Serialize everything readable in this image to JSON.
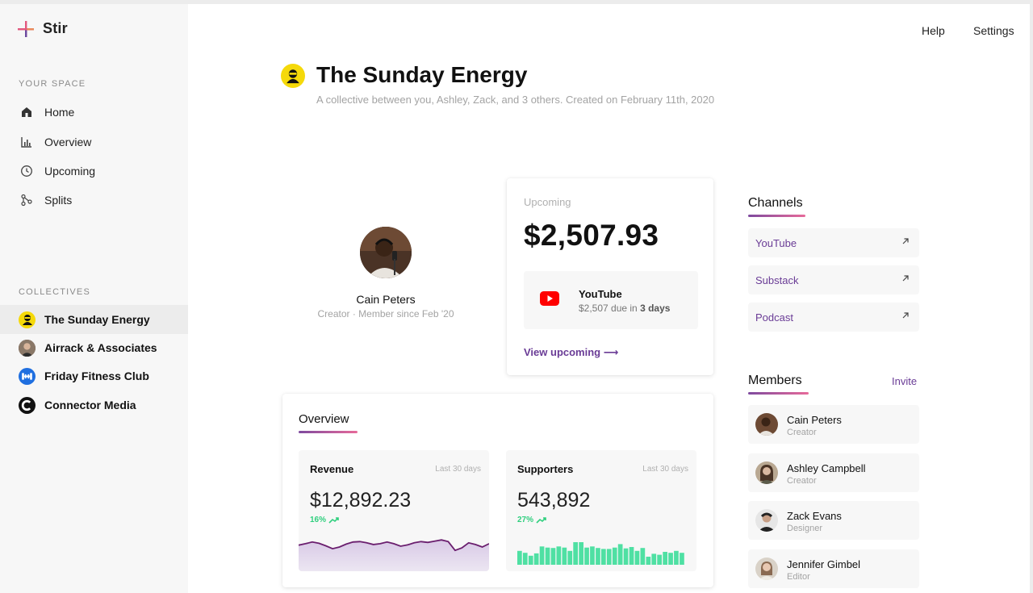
{
  "app": {
    "name": "Stir"
  },
  "top_links": {
    "help": "Help",
    "settings": "Settings"
  },
  "sidebar": {
    "your_space_label": "YOUR SPACE",
    "nav": [
      {
        "label": "Home",
        "icon": "home-icon"
      },
      {
        "label": "Overview",
        "icon": "bar-chart-icon"
      },
      {
        "label": "Upcoming",
        "icon": "clock-icon"
      },
      {
        "label": "Splits",
        "icon": "splits-icon"
      }
    ],
    "collectives_label": "COLLECTIVES",
    "collectives": [
      {
        "label": "The Sunday Energy",
        "active": true
      },
      {
        "label": "Airrack & Associates",
        "active": false
      },
      {
        "label": "Friday Fitness Club",
        "active": false
      },
      {
        "label": "Connector Media",
        "active": false
      }
    ]
  },
  "header": {
    "title": "The Sunday Energy",
    "subtitle": "A collective between you, Ashley, Zack, and 3 others. Created on February 11th, 2020"
  },
  "profile": {
    "name": "Cain Peters",
    "meta": "Creator · Member since Feb '20"
  },
  "upcoming": {
    "label": "Upcoming",
    "amount": "$2,507.93",
    "source_name": "YouTube",
    "due_prefix": "$2,507 due in ",
    "due_days": "3 days",
    "link": "View upcoming ⟶"
  },
  "overview": {
    "title": "Overview",
    "revenue": {
      "label": "Revenue",
      "range": "Last 30 days",
      "value": "$12,892.23",
      "delta": "16%",
      "trend": [
        0.55,
        0.62,
        0.7,
        0.64,
        0.52,
        0.38,
        0.46,
        0.6,
        0.7,
        0.72,
        0.66,
        0.58,
        0.62,
        0.7,
        0.62,
        0.5,
        0.56,
        0.66,
        0.72,
        0.68,
        0.74,
        0.8,
        0.72,
        0.3,
        0.42,
        0.66,
        0.58,
        0.46,
        0.62
      ]
    },
    "supporters": {
      "label": "Supporters",
      "range": "Last 30 days",
      "value": "543,892",
      "delta": "27%",
      "bars": [
        0.55,
        0.45,
        0.3,
        0.42,
        0.78,
        0.72,
        0.7,
        0.78,
        0.72,
        0.55,
        1.0,
        1.0,
        0.72,
        0.78,
        0.7,
        0.65,
        0.65,
        0.72,
        0.9,
        0.68,
        0.75,
        0.55,
        0.7,
        0.25,
        0.4,
        0.35,
        0.5,
        0.45,
        0.55,
        0.45
      ]
    },
    "colors": {
      "revenue_line": "#6a1e6e",
      "supporters_bar": "#4fe0a3"
    }
  },
  "channels": {
    "title": "Channels",
    "items": [
      "YouTube",
      "Substack",
      "Podcast"
    ]
  },
  "members": {
    "title": "Members",
    "invite": "Invite",
    "items": [
      {
        "name": "Cain Peters",
        "role": "Creator"
      },
      {
        "name": "Ashley Campbell",
        "role": "Creator"
      },
      {
        "name": "Zack Evans",
        "role": "Designer"
      },
      {
        "name": "Jennifer Gimbel",
        "role": "Editor"
      }
    ]
  },
  "colors": {
    "accent": "#6a3c96",
    "gradient_from": "#7e4a9e",
    "gradient_to": "#e76a9a",
    "positive": "#2fcf7e"
  }
}
